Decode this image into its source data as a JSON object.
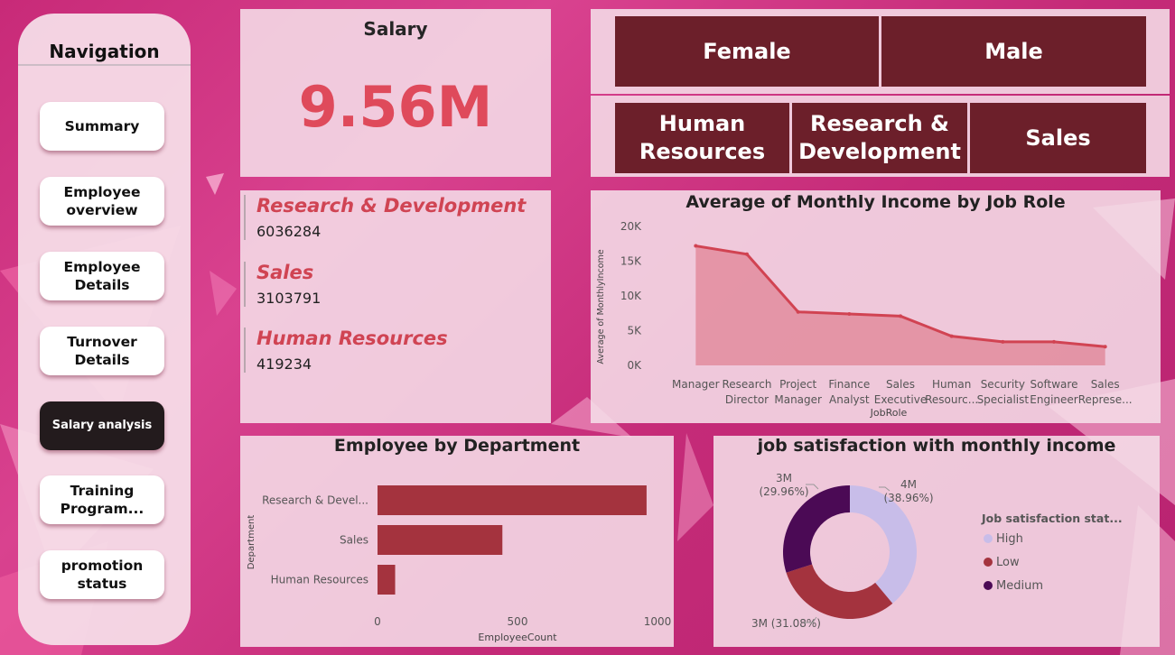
{
  "navigation": {
    "title": "Navigation",
    "items": [
      {
        "label": "Summary",
        "active": false
      },
      {
        "label": "Employee overview",
        "active": false
      },
      {
        "label": "Employee Details",
        "active": false
      },
      {
        "label": "Turnover Details",
        "active": false
      },
      {
        "label": "Salary analysis",
        "active": true
      },
      {
        "label": "Training Program...",
        "active": false
      },
      {
        "label": "promotion status",
        "active": false
      }
    ]
  },
  "salary_card": {
    "title": "Salary",
    "value": "9.56M",
    "value_color": "#df4a5b"
  },
  "gender_slicer": {
    "options": [
      "Female",
      "Male"
    ]
  },
  "department_slicer": {
    "options": [
      "Human Resources",
      "Research & Development",
      "Sales"
    ]
  },
  "slicer_color": "#6c1f2a",
  "department_salaries": [
    {
      "name": "Research & Development",
      "amount": "6036284"
    },
    {
      "name": "Sales",
      "amount": "3103791"
    },
    {
      "name": "Human Resources",
      "amount": "419234"
    }
  ],
  "chart_data": [
    {
      "type": "area",
      "title": "Average of Monthly Income by Job Role",
      "xlabel": "JobRole",
      "ylabel": "Average of MonthlyIncome",
      "categories": [
        "Manager",
        "Research Director",
        "Project Manager",
        "Finance Analyst",
        "Sales Executive",
        "Human Resourc...",
        "Security Specialist",
        "Software Engineer",
        "Sales Represe..."
      ],
      "values": [
        17200,
        16000,
        7700,
        7400,
        7100,
        4200,
        3400,
        3400,
        2700
      ],
      "ylim": [
        0,
        20000
      ],
      "yticks": [
        {
          "v": 0,
          "label": "0K"
        },
        {
          "v": 5000,
          "label": "5K"
        },
        {
          "v": 10000,
          "label": "10K"
        },
        {
          "v": 15000,
          "label": "15K"
        },
        {
          "v": 20000,
          "label": "20K"
        }
      ],
      "color": "#d14352"
    },
    {
      "type": "bar",
      "orientation": "horizontal",
      "title": "Employee by Department",
      "xlabel": "EmployeeCount",
      "ylabel": "Department",
      "categories": [
        "Research & Devel...",
        "Sales",
        "Human Resources"
      ],
      "values": [
        961,
        446,
        63
      ],
      "xlim": [
        0,
        1000
      ],
      "xticks": [
        {
          "v": 0,
          "label": "0"
        },
        {
          "v": 500,
          "label": "500"
        },
        {
          "v": 1000,
          "label": "1000"
        }
      ],
      "color": "#a4333e"
    },
    {
      "type": "pie",
      "donut": true,
      "title": "job satisfaction with monthly income",
      "legend_title": "Job satisfaction stat...",
      "legend_position": "right",
      "slices": [
        {
          "name": "High",
          "value": 38.96,
          "label": "4M",
          "pct_label": "(38.96%)",
          "color": "#c8bde9"
        },
        {
          "name": "Low",
          "value": 31.08,
          "label": "3M (31.08%)",
          "color": "#a4333e"
        },
        {
          "name": "Medium",
          "value": 29.96,
          "label": "3M",
          "pct_label": "(29.96%)",
          "color": "#4b0a55"
        }
      ]
    }
  ]
}
